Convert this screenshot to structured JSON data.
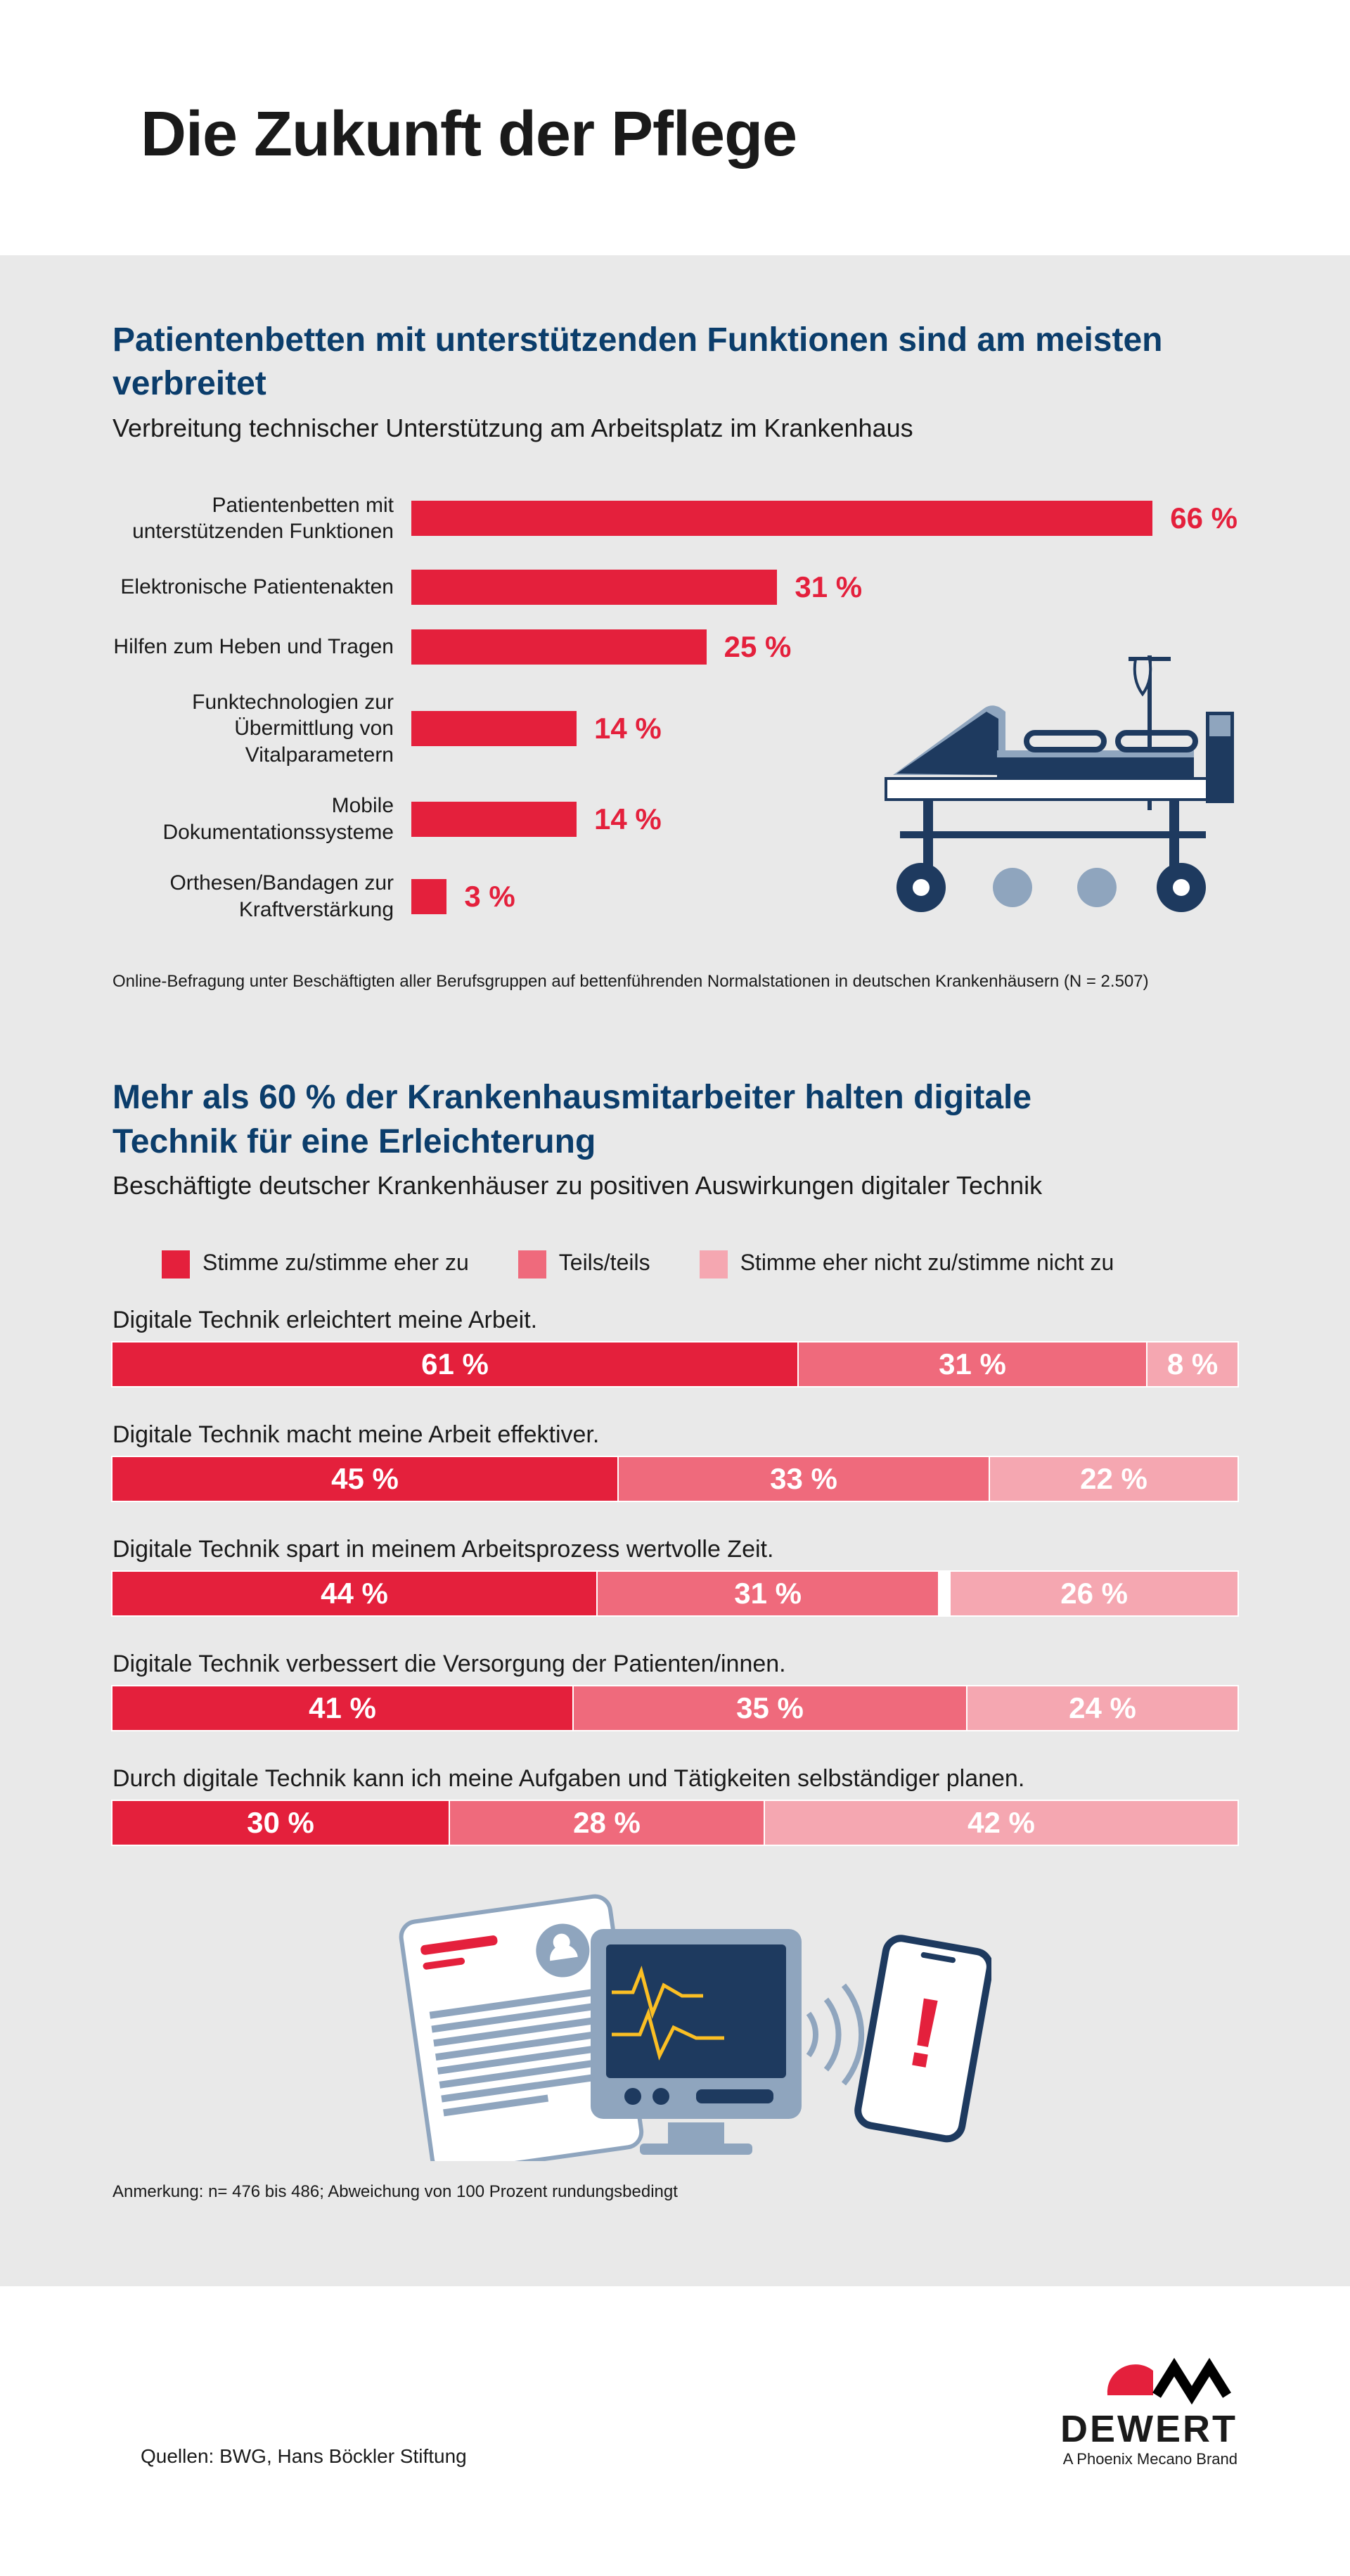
{
  "title": "Die Zukunft der Pflege",
  "colors": {
    "primary": "#e4203c",
    "mid": "#ef6a7c",
    "light": "#f5a7b1",
    "panel_bg": "#e9e9e9",
    "heading": "#0b3d6b",
    "bed_dark": "#1e3a5f",
    "bed_light": "#8fa5be"
  },
  "chart1": {
    "title": "Patientenbetten mit unterstützenden Funktionen sind am meisten verbreitet",
    "subtitle": "Verbreitung technischer Unterstützung am Arbeitsplatz im Krankenhaus",
    "max_pct": 70,
    "bar_color": "#e4203c",
    "pct_color": "#e4203c",
    "rows": [
      {
        "label": "Patientenbetten mit unterstützenden Funktionen",
        "pct": 66
      },
      {
        "label": "Elektronische Patientenakten",
        "pct": 31
      },
      {
        "label": "Hilfen zum Heben und Tragen",
        "pct": 25
      },
      {
        "label": "Funktechnologien zur Übermittlung von Vitalparametern",
        "pct": 14
      },
      {
        "label": "Mobile Dokumentationssysteme",
        "pct": 14
      },
      {
        "label": "Orthesen/Bandagen zur Kraftverstärkung",
        "pct": 3
      }
    ],
    "footnote": "Online-Befragung unter Beschäftigten aller Berufsgruppen auf bettenführenden Normalstationen in deutschen Krankenhäusern (N = 2.507)"
  },
  "chart2": {
    "title": "Mehr als 60 % der Krankenhausmitarbeiter halten digitale Technik für eine Erleichterung",
    "subtitle": "Beschäftigte deutscher Krankenhäuser zu positiven Auswirkungen digitaler Technik",
    "legend": [
      {
        "label": "Stimme zu/stimme eher zu",
        "color": "#e4203c"
      },
      {
        "label": "Teils/teils",
        "color": "#ef6a7c"
      },
      {
        "label": "Stimme eher nicht zu/stimme nicht zu",
        "color": "#f5a7b1"
      }
    ],
    "rows": [
      {
        "q": "Digitale Technik erleichtert meine Arbeit.",
        "vals": [
          61,
          31,
          8
        ]
      },
      {
        "q": "Digitale Technik macht meine Arbeit effektiver.",
        "vals": [
          45,
          33,
          22
        ]
      },
      {
        "q": "Digitale Technik spart in meinem Arbeitsprozess wertvolle Zeit.",
        "vals": [
          44,
          31,
          26
        ]
      },
      {
        "q": "Digitale Technik verbessert die Versorgung der Patienten/innen.",
        "vals": [
          41,
          35,
          24
        ]
      },
      {
        "q": "Durch digitale Technik kann ich meine Aufgaben und Tätigkeiten selbständiger planen.",
        "vals": [
          30,
          28,
          42
        ]
      }
    ],
    "spacers": {
      "2": 1
    },
    "footnote": "Anmerkung: n= 476 bis 486; Abweichung von 100 Prozent rundungsbedingt"
  },
  "footer": {
    "sources": "Quellen: BWG, Hans Böckler Stiftung",
    "brand": "DEWERT",
    "tag": "A Phoenix Mecano Brand"
  }
}
